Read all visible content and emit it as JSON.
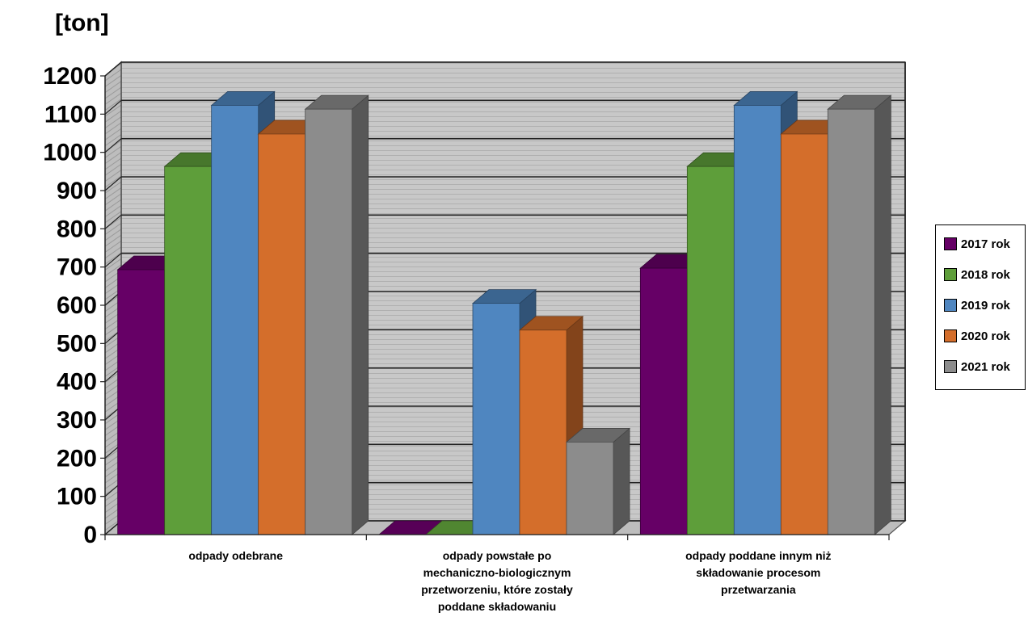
{
  "chart_data": {
    "type": "bar",
    "ylabel": "[ton]",
    "ylim": [
      0,
      1200
    ],
    "yticks": [
      0,
      100,
      200,
      300,
      400,
      500,
      600,
      700,
      800,
      900,
      1000,
      1100,
      1200
    ],
    "grid": true,
    "legend_position": "right",
    "categories": [
      "odpady odebrane",
      "odpady powstałe po mechaniczno-biologicznym przetworzeniu, które zostały poddane składowaniu",
      "odpady poddane innym niż składowanie procesom przetwarzania"
    ],
    "category_lines": [
      [
        "odpady odebrane"
      ],
      [
        "odpady powstałe po",
        "mechaniczno-biologicznym",
        "przetworzeniu, które zostały",
        "poddane składowaniu"
      ],
      [
        "odpady poddane innym niż",
        "składowanie procesom",
        "przetwarzania"
      ]
    ],
    "series": [
      {
        "name": "2017 rok",
        "color": "#660066",
        "values": [
          693,
          0,
          697
        ]
      },
      {
        "name": "2018 rok",
        "color": "#5e9e3a",
        "values": [
          963,
          0,
          963
        ]
      },
      {
        "name": "2019 rok",
        "color": "#4f86c0",
        "values": [
          1123,
          605,
          1123
        ]
      },
      {
        "name": "2020 rok",
        "color": "#d46e2b",
        "values": [
          1048,
          535,
          1048
        ]
      },
      {
        "name": "2021 rok",
        "color": "#8c8c8c",
        "values": [
          1113,
          242,
          1113
        ]
      }
    ]
  }
}
